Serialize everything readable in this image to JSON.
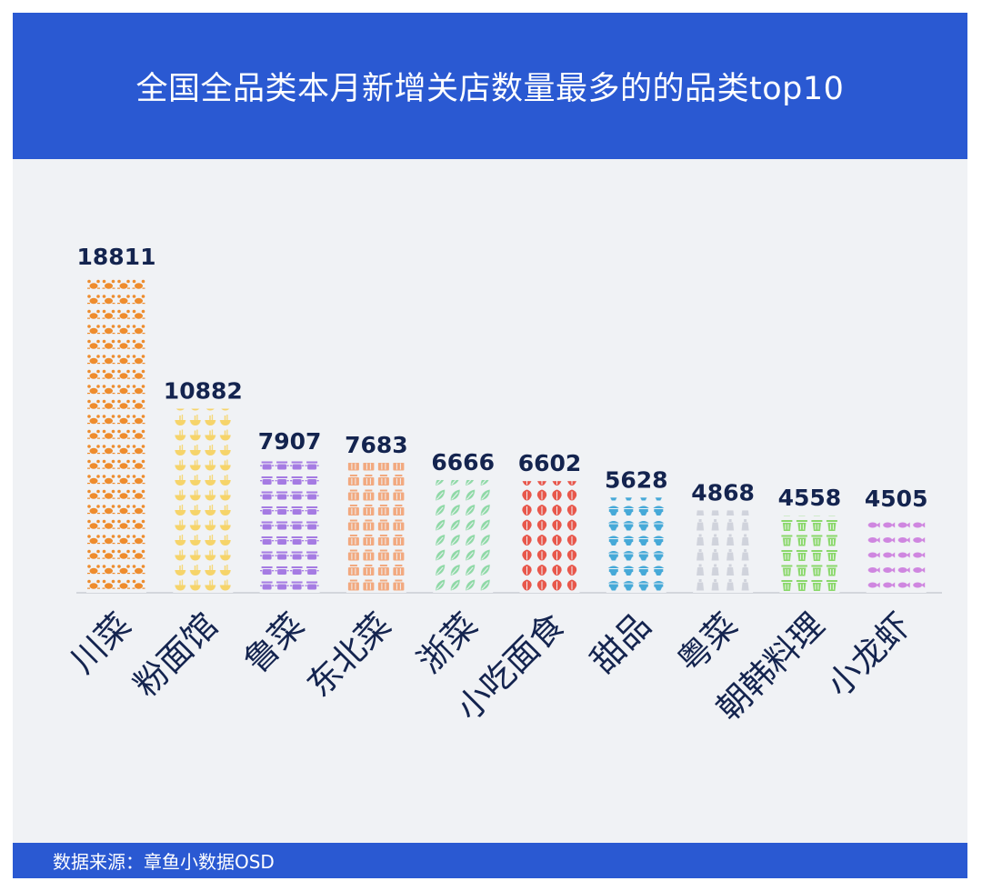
{
  "header": {
    "title": "全国全品类本月新增关店数量最多的的品类top10"
  },
  "footer": {
    "source": "数据来源：章鱼小数据OSD"
  },
  "chart_data": {
    "type": "bar",
    "title": "全国全品类本月新增关店数量最多的的品类top10",
    "categories": [
      "川菜",
      "粉面馆",
      "鲁菜",
      "东北菜",
      "浙菜",
      "小吃面食",
      "甜品",
      "粤菜",
      "朝韩料理",
      "小龙虾"
    ],
    "values": [
      18811,
      10882,
      7907,
      7683,
      6666,
      6602,
      5628,
      4868,
      4558,
      4505
    ],
    "value_labels": [
      "18811",
      "10882",
      "7907",
      "7683",
      "6666",
      "6602",
      "5628",
      "4868",
      "4558",
      "4505"
    ],
    "colors": [
      "#ee8c2d",
      "#f6d46a",
      "#a57be3",
      "#f2a97f",
      "#8ed9a6",
      "#e8574b",
      "#46a9d8",
      "#d0d3dc",
      "#8ad86a",
      "#cf86e0"
    ],
    "icons": [
      "crab-icon",
      "bowl-icon",
      "pot-icon",
      "basket-icon",
      "leaf-icon",
      "lobster-icon",
      "cake-icon",
      "bottle-icon",
      "trash-can-icon",
      "fish-icon"
    ],
    "ylim": [
      0,
      18811
    ],
    "grid": false,
    "legend": "none",
    "xlabel": "",
    "ylabel": ""
  }
}
